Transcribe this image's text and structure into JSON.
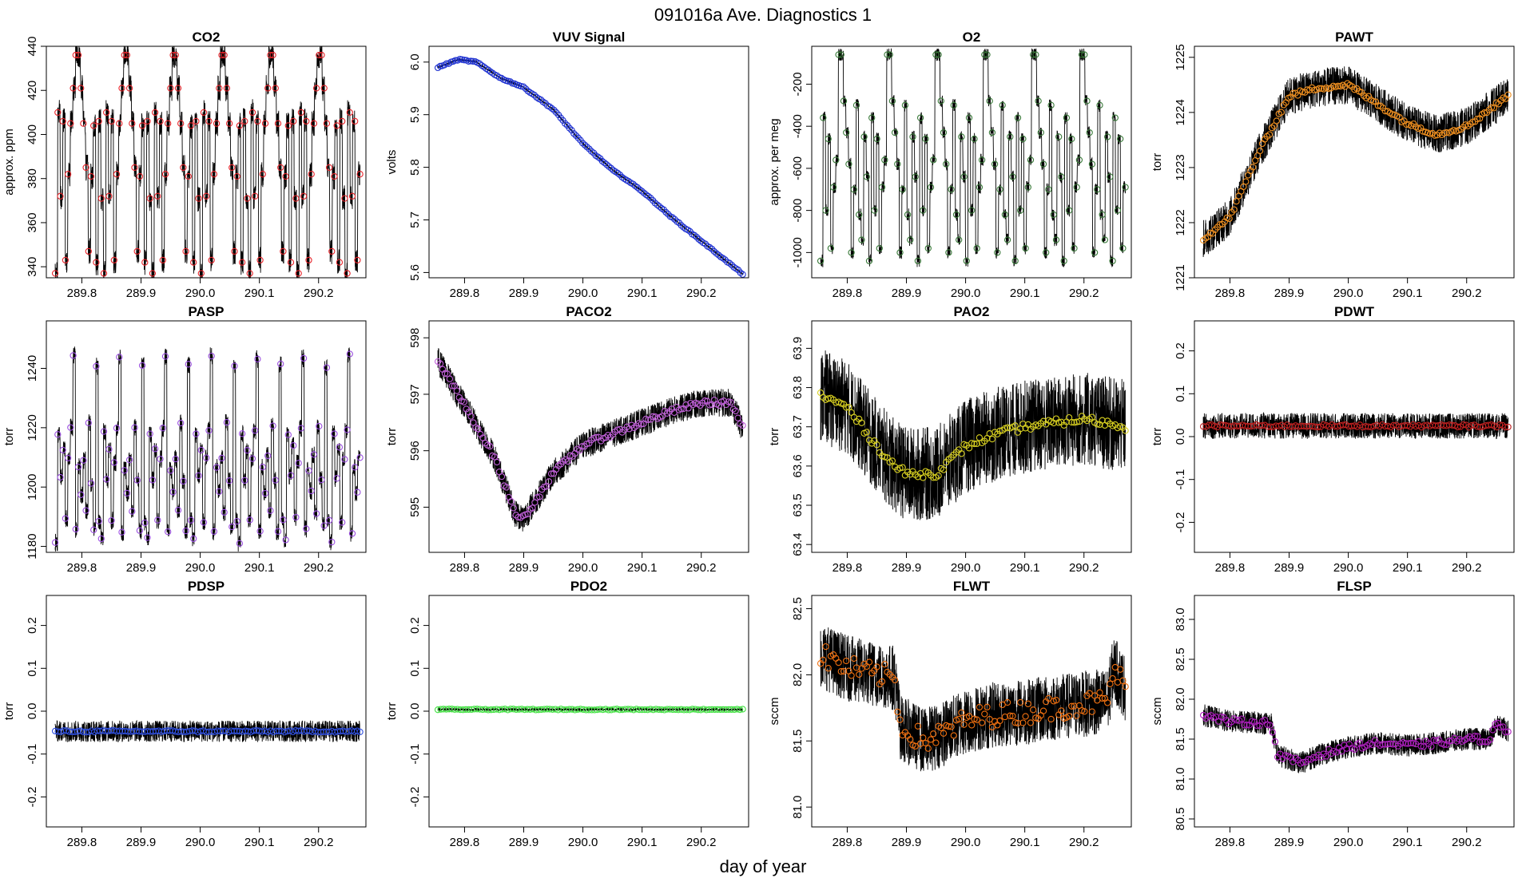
{
  "figure": {
    "title": "091016a   Ave. Diagnostics 1",
    "xlabel": "day of year"
  },
  "chart_data": [
    {
      "type": "line",
      "name": "co2",
      "title": "CO2",
      "ylabel": "approx. ppm",
      "marker_color": "#e8252b",
      "xlim": [
        289.74,
        290.28
      ],
      "ylim": [
        335,
        440
      ],
      "yticks": [
        340,
        360,
        380,
        400,
        420,
        440
      ],
      "xticks": [
        289.8,
        289.9,
        290.0,
        290.1,
        290.2
      ],
      "gen": {
        "kind": "cycle",
        "levels": [
          337,
          410,
          372,
          406,
          343,
          382,
          405,
          421,
          436,
          436,
          421,
          405,
          385,
          347,
          381,
          404,
          342,
          406,
          371
        ],
        "raw_noise": 6,
        "mk_noise": 0,
        "n": 120
      }
    },
    {
      "type": "line",
      "name": "vuv-signal",
      "title": "VUV Signal",
      "ylabel": "volts",
      "marker_color": "#1c2fd0",
      "xlim": [
        289.74,
        290.28
      ],
      "ylim": [
        5.59,
        6.03
      ],
      "yticks": [
        5.6,
        5.7,
        5.8,
        5.9,
        6.0
      ],
      "xticks": [
        289.8,
        289.9,
        290.0,
        290.1,
        290.2
      ],
      "gen": {
        "kind": "points",
        "pts": [
          [
            289.755,
            5.99
          ],
          [
            289.79,
            6.005
          ],
          [
            289.82,
            6.0
          ],
          [
            289.86,
            5.97
          ],
          [
            289.9,
            5.952
          ],
          [
            289.95,
            5.91
          ],
          [
            290.0,
            5.845
          ],
          [
            290.05,
            5.795
          ],
          [
            290.1,
            5.755
          ],
          [
            290.15,
            5.705
          ],
          [
            290.2,
            5.66
          ],
          [
            290.27,
            5.597
          ]
        ],
        "raw_noise": 0.002,
        "mk_noise": 0.001,
        "n": 140
      }
    },
    {
      "type": "line",
      "name": "o2",
      "title": "O2",
      "ylabel": "approx. per meg",
      "marker_color": "#3a7a3a",
      "xlim": [
        289.74,
        290.28
      ],
      "ylim": [
        -1120,
        -20
      ],
      "yticks": [
        -1000,
        -800,
        -600,
        -400,
        -200
      ],
      "xticks": [
        289.8,
        289.9,
        290.0,
        290.1,
        290.2
      ],
      "gen": {
        "kind": "cycle",
        "levels": [
          -1040,
          -360,
          -800,
          -460,
          -980,
          -690,
          -560,
          -60,
          -60,
          -280,
          -430,
          -580,
          -1000,
          -700,
          -300,
          -820,
          -940,
          -450,
          -640
        ],
        "raw_noise": 30,
        "mk_noise": 0,
        "n": 120
      }
    },
    {
      "type": "line",
      "name": "pawt",
      "title": "PAWT",
      "ylabel": "torr",
      "marker_color": "#f09020",
      "xlim": [
        289.74,
        290.28
      ],
      "ylim": [
        1221.0,
        1225.2
      ],
      "yticks": [
        1221,
        1222,
        1223,
        1224,
        1225
      ],
      "xticks": [
        289.8,
        289.9,
        290.0,
        290.1,
        290.2
      ],
      "gen": {
        "kind": "points",
        "pts": [
          [
            289.755,
            1221.7
          ],
          [
            289.8,
            1222.1
          ],
          [
            289.85,
            1223.3
          ],
          [
            289.9,
            1224.3
          ],
          [
            289.95,
            1224.45
          ],
          [
            290.0,
            1224.5
          ],
          [
            290.05,
            1224.15
          ],
          [
            290.1,
            1223.8
          ],
          [
            290.15,
            1223.6
          ],
          [
            290.2,
            1223.75
          ],
          [
            290.27,
            1224.3
          ]
        ],
        "raw_noise": 0.35,
        "mk_noise": 0.04,
        "n": 130
      }
    },
    {
      "type": "line",
      "name": "pasp",
      "title": "PASP",
      "ylabel": "torr",
      "marker_color": "#9b4fe0",
      "xlim": [
        289.74,
        290.28
      ],
      "ylim": [
        1178,
        1256
      ],
      "yticks": [
        1180,
        1200,
        1220,
        1240
      ],
      "xticks": [
        289.8,
        289.9,
        290.0,
        290.1,
        290.2
      ],
      "gen": {
        "kind": "cycle",
        "levels": [
          1182,
          1218,
          1203,
          1213,
          1189,
          1209,
          1220,
          1244,
          1185,
          1206,
          1198,
          1210,
          1192,
          1221,
          1202,
          1186,
          1241,
          1188
        ],
        "raw_noise": 3,
        "mk_noise": 1,
        "n": 120
      }
    },
    {
      "type": "line",
      "name": "paco2",
      "title": "PACO2",
      "ylabel": "torr",
      "marker_color": "#c060d8",
      "xlim": [
        289.74,
        290.28
      ],
      "ylim": [
        594.2,
        598.3
      ],
      "yticks": [
        595,
        596,
        597,
        598
      ],
      "xticks": [
        289.8,
        289.9,
        290.0,
        290.1,
        290.2
      ],
      "gen": {
        "kind": "points",
        "pts": [
          [
            289.755,
            597.6
          ],
          [
            289.8,
            596.8
          ],
          [
            289.85,
            595.9
          ],
          [
            289.885,
            594.9
          ],
          [
            289.9,
            594.8
          ],
          [
            289.95,
            595.6
          ],
          [
            290.0,
            596.1
          ],
          [
            290.05,
            596.3
          ],
          [
            290.1,
            596.5
          ],
          [
            290.15,
            596.7
          ],
          [
            290.2,
            596.85
          ],
          [
            290.25,
            596.85
          ],
          [
            290.27,
            596.4
          ]
        ],
        "raw_noise": 0.25,
        "mk_noise": 0.05,
        "n": 130
      }
    },
    {
      "type": "line",
      "name": "pao2",
      "title": "PAO2",
      "ylabel": "torr",
      "marker_color": "#d8d020",
      "xlim": [
        289.74,
        290.28
      ],
      "ylim": [
        63.38,
        63.97
      ],
      "yticks": [
        63.4,
        63.5,
        63.6,
        63.7,
        63.8,
        63.9
      ],
      "xticks": [
        289.8,
        289.9,
        290.0,
        290.1,
        290.2
      ],
      "gen": {
        "kind": "points",
        "pts": [
          [
            289.755,
            63.78
          ],
          [
            289.8,
            63.75
          ],
          [
            289.85,
            63.65
          ],
          [
            289.88,
            63.6
          ],
          [
            289.9,
            63.58
          ],
          [
            289.95,
            63.58
          ],
          [
            290.0,
            63.65
          ],
          [
            290.05,
            63.68
          ],
          [
            290.1,
            63.7
          ],
          [
            290.15,
            63.71
          ],
          [
            290.2,
            63.72
          ],
          [
            290.27,
            63.7
          ]
        ],
        "raw_noise": 0.12,
        "mk_noise": 0.01,
        "n": 120
      }
    },
    {
      "type": "line",
      "name": "pdwt",
      "title": "PDWT",
      "ylabel": "torr",
      "marker_color": "#c02020",
      "xlim": [
        289.74,
        290.28
      ],
      "ylim": [
        -0.27,
        0.27
      ],
      "yticks": [
        -0.2,
        -0.1,
        0.0,
        0.1,
        0.2
      ],
      "xticks": [
        289.8,
        289.9,
        290.0,
        290.1,
        290.2
      ],
      "gen": {
        "kind": "points",
        "pts": [
          [
            289.755,
            0.025
          ],
          [
            290.27,
            0.025
          ]
        ],
        "raw_noise": 0.03,
        "mk_noise": 0.003,
        "n": 110
      }
    },
    {
      "type": "line",
      "name": "pdsp",
      "title": "PDSP",
      "ylabel": "torr",
      "marker_color": "#3050e0",
      "xlim": [
        289.74,
        290.28
      ],
      "ylim": [
        -0.27,
        0.27
      ],
      "yticks": [
        -0.2,
        -0.1,
        0.0,
        0.1,
        0.2
      ],
      "xticks": [
        289.8,
        289.9,
        290.0,
        290.1,
        290.2
      ],
      "gen": {
        "kind": "points",
        "pts": [
          [
            289.755,
            -0.047
          ],
          [
            290.27,
            -0.047
          ]
        ],
        "raw_noise": 0.025,
        "mk_noise": 0.002,
        "n": 110
      }
    },
    {
      "type": "line",
      "name": "pdo2",
      "title": "PDO2",
      "ylabel": "torr",
      "marker_color": "#40e040",
      "xlim": [
        289.74,
        290.28
      ],
      "ylim": [
        -0.27,
        0.27
      ],
      "yticks": [
        -0.2,
        -0.1,
        0.0,
        0.1,
        0.2
      ],
      "xticks": [
        289.8,
        289.9,
        290.0,
        290.1,
        290.2
      ],
      "gen": {
        "kind": "points",
        "pts": [
          [
            289.755,
            0.004
          ],
          [
            290.27,
            0.004
          ]
        ],
        "raw_noise": 0.003,
        "mk_noise": 0.001,
        "n": 110
      }
    },
    {
      "type": "line",
      "name": "flwt",
      "title": "FLWT",
      "ylabel": "sccm",
      "marker_color": "#f07010",
      "xlim": [
        289.74,
        290.28
      ],
      "ylim": [
        80.85,
        82.6
      ],
      "yticks": [
        81.0,
        81.5,
        82.0,
        82.5
      ],
      "xticks": [
        289.8,
        289.9,
        290.0,
        290.1,
        290.2
      ],
      "gen": {
        "kind": "points",
        "pts": [
          [
            289.755,
            82.15
          ],
          [
            289.8,
            82.05
          ],
          [
            289.85,
            82.0
          ],
          [
            289.88,
            81.98
          ],
          [
            289.89,
            81.6
          ],
          [
            289.93,
            81.5
          ],
          [
            289.96,
            81.55
          ],
          [
            290.0,
            81.65
          ],
          [
            290.05,
            81.7
          ],
          [
            290.1,
            81.72
          ],
          [
            290.15,
            81.75
          ],
          [
            290.2,
            81.78
          ],
          [
            290.24,
            81.8
          ],
          [
            290.25,
            82.05
          ],
          [
            290.27,
            81.9
          ]
        ],
        "raw_noise": 0.25,
        "mk_noise": 0.09,
        "n": 120
      }
    },
    {
      "type": "line",
      "name": "flsp",
      "title": "FLSP",
      "ylabel": "sccm",
      "marker_color": "#b020c0",
      "xlim": [
        289.74,
        290.28
      ],
      "ylim": [
        80.4,
        83.3
      ],
      "yticks": [
        80.5,
        81.0,
        81.5,
        82.0,
        82.5,
        83.0
      ],
      "xticks": [
        289.8,
        289.9,
        290.0,
        290.1,
        290.2
      ],
      "gen": {
        "kind": "points",
        "pts": [
          [
            289.755,
            81.8
          ],
          [
            289.8,
            81.72
          ],
          [
            289.87,
            81.7
          ],
          [
            289.88,
            81.3
          ],
          [
            289.92,
            81.2
          ],
          [
            289.95,
            81.3
          ],
          [
            290.0,
            81.4
          ],
          [
            290.05,
            81.45
          ],
          [
            290.1,
            81.42
          ],
          [
            290.15,
            81.45
          ],
          [
            290.2,
            81.5
          ],
          [
            290.24,
            81.5
          ],
          [
            290.25,
            81.7
          ],
          [
            290.27,
            81.6
          ]
        ],
        "raw_noise": 0.14,
        "mk_noise": 0.04,
        "n": 120
      }
    }
  ]
}
